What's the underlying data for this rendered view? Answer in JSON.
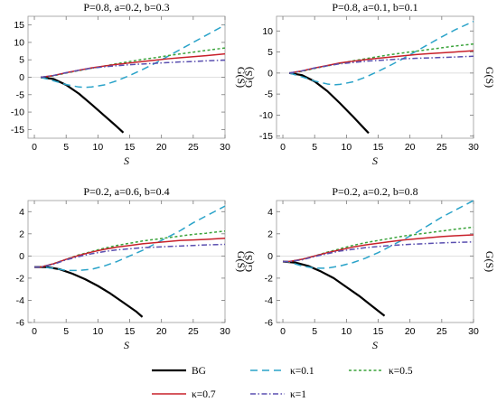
{
  "figure": {
    "legend": {
      "placement": "bottom",
      "entries": [
        {
          "label": "BG",
          "color": "#000000",
          "dash": "solid"
        },
        {
          "label": "κ=0.1",
          "color": "#2aa3c9",
          "dash": "dashed"
        },
        {
          "label": "κ=0.5",
          "color": "#3aa33a",
          "dash": "dotted-dash"
        },
        {
          "label": "κ=0.7",
          "color": "#c8202a",
          "dash": "solid"
        },
        {
          "label": "κ=1",
          "color": "#5a4fb0",
          "dash": "dash-dot"
        }
      ]
    }
  },
  "chart_data": [
    {
      "type": "line",
      "title": "P=0.8, a=0.2, b=0.3",
      "xlabel": "S",
      "ylabel": "",
      "ylabel_right": "G(S)",
      "xlim": [
        -1,
        30
      ],
      "ylim": [
        -17.5,
        17.5
      ],
      "xticks": [
        0,
        5,
        10,
        15,
        20,
        25,
        30
      ],
      "yticks": [
        -15,
        -10,
        -5,
        0,
        5,
        10,
        15
      ],
      "grid": false,
      "series": [
        {
          "name": "BG",
          "x": [
            1,
            3,
            5,
            7,
            9,
            11,
            13,
            14
          ],
          "y": [
            0,
            -0.5,
            -2.2,
            -4.7,
            -7.8,
            -11.0,
            -14.2,
            -15.9
          ]
        },
        {
          "name": "κ=0.1",
          "x": [
            1,
            3,
            5,
            7,
            8,
            9,
            11,
            13,
            15,
            17,
            19,
            21,
            23,
            25,
            27,
            30
          ],
          "y": [
            0,
            -1.0,
            -2.1,
            -2.8,
            -2.9,
            -2.8,
            -2.2,
            -1.0,
            0.5,
            2.2,
            4.0,
            6.0,
            8.0,
            10.0,
            12.0,
            15.0
          ]
        },
        {
          "name": "κ=0.5",
          "x": [
            1,
            3,
            5,
            7,
            9,
            11,
            13,
            15,
            17,
            19,
            21,
            23,
            25,
            27,
            30
          ],
          "y": [
            0,
            0.4,
            1.2,
            1.9,
            2.6,
            3.2,
            3.9,
            4.5,
            5.1,
            5.6,
            6.2,
            6.7,
            7.2,
            7.7,
            8.4
          ]
        },
        {
          "name": "κ=0.7",
          "x": [
            1,
            3,
            5,
            7,
            9,
            11,
            13,
            15,
            17,
            19,
            21,
            23,
            25,
            27,
            30
          ],
          "y": [
            0,
            0.5,
            1.3,
            2.0,
            2.7,
            3.2,
            3.7,
            4.1,
            4.5,
            4.9,
            5.3,
            5.6,
            5.9,
            6.2,
            6.7
          ]
        },
        {
          "name": "κ=1",
          "x": [
            1,
            3,
            5,
            7,
            9,
            11,
            13,
            15,
            17,
            19,
            21,
            23,
            25,
            27,
            30
          ],
          "y": [
            0,
            0.5,
            1.3,
            2.0,
            2.6,
            3.0,
            3.3,
            3.6,
            3.8,
            4.0,
            4.2,
            4.4,
            4.5,
            4.7,
            4.9
          ]
        }
      ]
    },
    {
      "type": "line",
      "title": "P=0.8, a=0.1, b=0.1",
      "xlabel": "S",
      "ylabel": "G(S)",
      "ylabel_right": "G(S)",
      "xlim": [
        -1,
        30
      ],
      "ylim": [
        -15.5,
        13.5
      ],
      "xticks": [
        0,
        5,
        10,
        15,
        20,
        25,
        30
      ],
      "yticks": [
        -15,
        -10,
        -5,
        0,
        5,
        10
      ],
      "grid": false,
      "series": [
        {
          "name": "BG",
          "x": [
            1,
            3,
            5,
            7,
            9,
            11,
            13,
            13.5
          ],
          "y": [
            0,
            -0.5,
            -2.0,
            -4.3,
            -7.2,
            -10.3,
            -13.5,
            -14.3
          ]
        },
        {
          "name": "κ=0.1",
          "x": [
            1,
            3,
            5,
            7,
            8,
            9,
            11,
            13,
            15,
            17,
            19,
            21,
            23,
            25,
            27,
            30
          ],
          "y": [
            0,
            -0.9,
            -1.9,
            -2.6,
            -2.8,
            -2.7,
            -2.1,
            -1.0,
            0.4,
            1.9,
            3.5,
            5.2,
            6.9,
            8.6,
            10.2,
            12.3
          ]
        },
        {
          "name": "κ=0.5",
          "x": [
            1,
            3,
            5,
            7,
            9,
            11,
            13,
            15,
            17,
            19,
            21,
            23,
            25,
            27,
            30
          ],
          "y": [
            0,
            0.4,
            1.1,
            1.7,
            2.3,
            2.9,
            3.4,
            3.9,
            4.4,
            4.8,
            5.2,
            5.6,
            6.0,
            6.4,
            6.9
          ]
        },
        {
          "name": "κ=0.7",
          "x": [
            1,
            3,
            5,
            7,
            9,
            11,
            13,
            15,
            17,
            19,
            21,
            23,
            25,
            27,
            30
          ],
          "y": [
            0,
            0.5,
            1.2,
            1.8,
            2.4,
            2.8,
            3.2,
            3.5,
            3.8,
            4.1,
            4.4,
            4.6,
            4.8,
            5.0,
            5.3
          ]
        },
        {
          "name": "κ=1",
          "x": [
            1,
            3,
            5,
            7,
            9,
            11,
            13,
            15,
            17,
            19,
            21,
            23,
            25,
            27,
            30
          ],
          "y": [
            0,
            0.5,
            1.2,
            1.7,
            2.2,
            2.5,
            2.8,
            3.0,
            3.2,
            3.4,
            3.5,
            3.6,
            3.7,
            3.8,
            4.0
          ]
        }
      ]
    },
    {
      "type": "line",
      "title": "P=0.2, a=0.6, b=0.4",
      "xlabel": "S",
      "ylabel": "",
      "ylabel_right": "G(S)",
      "xlim": [
        -1,
        30
      ],
      "ylim": [
        -6,
        5
      ],
      "xticks": [
        0,
        5,
        10,
        15,
        20,
        25,
        30
      ],
      "yticks": [
        -6,
        -4,
        -2,
        0,
        2,
        4
      ],
      "grid": false,
      "series": [
        {
          "name": "BG",
          "x": [
            0,
            2,
            4,
            6,
            8,
            10,
            12,
            14,
            16,
            17
          ],
          "y": [
            -1.0,
            -1.0,
            -1.2,
            -1.6,
            -2.1,
            -2.7,
            -3.4,
            -4.2,
            -5.0,
            -5.5
          ]
        },
        {
          "name": "κ=0.1",
          "x": [
            0,
            1,
            3,
            5,
            7,
            9,
            11,
            13,
            15,
            17,
            19,
            21,
            23,
            25,
            27,
            30
          ],
          "y": [
            -1.0,
            -1.0,
            -1.1,
            -1.3,
            -1.3,
            -1.2,
            -0.9,
            -0.5,
            0.0,
            0.5,
            1.1,
            1.7,
            2.3,
            3.0,
            3.6,
            4.5
          ]
        },
        {
          "name": "κ=0.5",
          "x": [
            0,
            1,
            3,
            5,
            7,
            9,
            11,
            13,
            15,
            17,
            19,
            21,
            23,
            25,
            27,
            30
          ],
          "y": [
            -1.0,
            -1.0,
            -0.7,
            -0.3,
            0.1,
            0.4,
            0.7,
            0.95,
            1.15,
            1.35,
            1.5,
            1.65,
            1.8,
            1.95,
            2.05,
            2.25
          ]
        },
        {
          "name": "κ=0.7",
          "x": [
            0,
            1,
            3,
            5,
            7,
            9,
            11,
            13,
            15,
            17,
            19,
            21,
            23,
            25,
            27,
            30
          ],
          "y": [
            -1.0,
            -1.0,
            -0.7,
            -0.3,
            0.05,
            0.35,
            0.6,
            0.8,
            0.95,
            1.1,
            1.2,
            1.3,
            1.4,
            1.45,
            1.5,
            1.6
          ]
        },
        {
          "name": "κ=1",
          "x": [
            0,
            1,
            3,
            5,
            7,
            9,
            11,
            13,
            15,
            17,
            19,
            21,
            23,
            25,
            27,
            30
          ],
          "y": [
            -1.0,
            -1.0,
            -0.75,
            -0.35,
            -0.05,
            0.2,
            0.4,
            0.55,
            0.65,
            0.75,
            0.8,
            0.85,
            0.9,
            0.95,
            1.0,
            1.05
          ]
        }
      ]
    },
    {
      "type": "line",
      "title": "P=0.2, a=0.2, b=0.8",
      "xlabel": "S",
      "ylabel": "G(S)",
      "ylabel_right": "G(S)",
      "xlim": [
        -1,
        30
      ],
      "ylim": [
        -6,
        5
      ],
      "xticks": [
        0,
        5,
        10,
        15,
        20,
        25,
        30
      ],
      "yticks": [
        -6,
        -4,
        -2,
        0,
        2,
        4
      ],
      "grid": false,
      "series": [
        {
          "name": "BG",
          "x": [
            0,
            2,
            4,
            6,
            8,
            10,
            12,
            14,
            16
          ],
          "y": [
            -0.5,
            -0.6,
            -0.9,
            -1.4,
            -2.0,
            -2.8,
            -3.6,
            -4.5,
            -5.4
          ]
        },
        {
          "name": "κ=0.1",
          "x": [
            0,
            1,
            3,
            5,
            7,
            9,
            11,
            13,
            15,
            17,
            19,
            21,
            23,
            25,
            27,
            30
          ],
          "y": [
            -0.5,
            -0.55,
            -0.9,
            -1.1,
            -1.1,
            -0.9,
            -0.6,
            -0.2,
            0.3,
            0.9,
            1.5,
            2.1,
            2.8,
            3.5,
            4.1,
            5.0
          ]
        },
        {
          "name": "κ=0.5",
          "x": [
            0,
            1,
            3,
            5,
            7,
            9,
            11,
            13,
            15,
            17,
            19,
            21,
            23,
            25,
            27,
            30
          ],
          "y": [
            -0.5,
            -0.5,
            -0.3,
            0.0,
            0.35,
            0.65,
            0.95,
            1.2,
            1.4,
            1.6,
            1.8,
            1.95,
            2.1,
            2.25,
            2.4,
            2.6
          ]
        },
        {
          "name": "κ=0.7",
          "x": [
            0,
            1,
            3,
            5,
            7,
            9,
            11,
            13,
            15,
            17,
            19,
            21,
            23,
            25,
            27,
            30
          ],
          "y": [
            -0.5,
            -0.5,
            -0.3,
            0.0,
            0.3,
            0.55,
            0.8,
            1.0,
            1.15,
            1.3,
            1.45,
            1.55,
            1.65,
            1.75,
            1.82,
            1.9
          ]
        },
        {
          "name": "κ=1",
          "x": [
            0,
            1,
            3,
            5,
            7,
            9,
            11,
            13,
            15,
            17,
            19,
            21,
            23,
            25,
            27,
            30
          ],
          "y": [
            -0.5,
            -0.5,
            -0.35,
            -0.05,
            0.2,
            0.45,
            0.6,
            0.75,
            0.85,
            0.95,
            1.02,
            1.08,
            1.13,
            1.18,
            1.22,
            1.27
          ]
        }
      ]
    }
  ]
}
